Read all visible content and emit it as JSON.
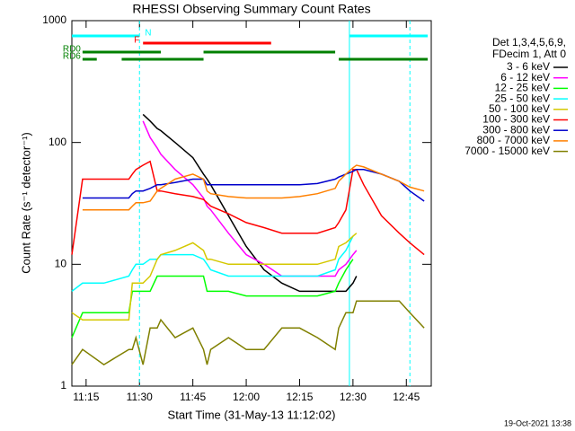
{
  "chart_data": {
    "type": "line",
    "title": "RHESSI Observing Summary Count Rates",
    "xlabel": "Start Time (31-May-13 11:12:02)",
    "ylabel": "Count Rate (s⁻¹ detector⁻¹)",
    "footer": "19-Oct-2021 13:38",
    "legend_header": [
      "Det 1,3,4,5,6,9,",
      "FDecim 1, Att 0"
    ],
    "log_y": true,
    "xlim": [
      "11:11",
      "12:52"
    ],
    "ylim": [
      1,
      1000
    ],
    "xticks": [
      "11:15",
      "11:30",
      "11:45",
      "12:00",
      "12:15",
      "12:30",
      "12:45"
    ],
    "yticks": [
      1,
      10,
      100,
      1000
    ],
    "x": [
      "11:11",
      "11:14",
      "11:20",
      "11:27",
      "11:28",
      "11:29",
      "11:31",
      "11:33",
      "11:35",
      "11:36",
      "11:40",
      "11:45",
      "11:48",
      "11:49",
      "11:50",
      "11:55",
      "12:00",
      "12:05",
      "12:10",
      "12:15",
      "12:20",
      "12:25",
      "12:26",
      "12:28",
      "12:30",
      "12:31",
      "12:33",
      "12:38",
      "12:43",
      "12:46",
      "12:50"
    ],
    "series": [
      {
        "name": "3 - 6 keV",
        "color": "#000000",
        "values": [
          null,
          null,
          null,
          null,
          null,
          null,
          170,
          150,
          130,
          125,
          100,
          75,
          55,
          50,
          45,
          25,
          14,
          9,
          7,
          6,
          6,
          6,
          6,
          6,
          7,
          8,
          null,
          null,
          null,
          null,
          null
        ]
      },
      {
        "name": "6 - 12 keV",
        "color": "#ff00ff",
        "values": [
          null,
          null,
          null,
          null,
          null,
          null,
          150,
          110,
          90,
          80,
          60,
          45,
          35,
          30,
          28,
          18,
          12,
          10,
          8,
          8,
          8,
          8,
          9,
          10,
          12,
          13,
          null,
          null,
          null,
          null,
          null
        ]
      },
      {
        "name": "12 - 25 keV",
        "color": "#00ff00",
        "values": [
          2.5,
          4,
          4,
          4,
          6,
          6,
          6,
          6,
          8,
          8,
          8,
          8,
          8,
          6,
          6,
          6,
          5.5,
          5.5,
          5.5,
          5.5,
          5.5,
          6,
          7,
          9,
          11,
          null,
          null,
          null,
          null,
          null,
          null
        ]
      },
      {
        "name": "25 - 50 keV",
        "color": "#00ffff",
        "values": [
          6,
          7,
          7,
          8,
          9,
          10,
          10,
          11,
          11,
          12,
          12,
          12,
          11,
          10,
          9,
          8,
          8,
          8,
          8,
          8,
          8,
          9,
          11,
          13,
          17,
          null,
          null,
          null,
          null,
          null,
          null
        ]
      },
      {
        "name": "50 - 100 keV",
        "color": "#d4c800",
        "values": [
          4,
          3.5,
          3.5,
          3.5,
          7,
          7,
          7,
          8,
          11,
          12,
          13,
          15,
          13,
          11,
          11,
          10,
          10,
          10,
          10,
          10,
          10,
          11,
          14,
          15,
          17,
          18,
          null,
          null,
          null,
          null,
          null
        ]
      },
      {
        "name": "100 - 300 keV",
        "color": "#ff0000",
        "values": [
          12,
          50,
          50,
          50,
          55,
          60,
          65,
          70,
          40,
          40,
          38,
          36,
          34,
          32,
          30,
          26,
          22,
          20,
          18,
          18,
          18,
          20,
          22,
          28,
          60,
          60,
          45,
          25,
          18,
          15,
          12
        ]
      },
      {
        "name": "300 - 800 keV",
        "color": "#0000cc",
        "values": [
          null,
          35,
          35,
          35,
          38,
          40,
          40,
          42,
          45,
          45,
          47,
          50,
          50,
          45,
          45,
          45,
          45,
          45,
          45,
          45,
          46,
          50,
          52,
          55,
          58,
          60,
          60,
          55,
          48,
          40,
          33
        ]
      },
      {
        "name": "800 - 7000 keV",
        "color": "#ff8000",
        "values": [
          null,
          28,
          28,
          28,
          30,
          32,
          32,
          33,
          40,
          42,
          50,
          55,
          50,
          40,
          38,
          36,
          35,
          35,
          35,
          36,
          38,
          42,
          48,
          55,
          62,
          65,
          63,
          55,
          48,
          43,
          40
        ]
      },
      {
        "name": "7000 - 15000 keV",
        "color": "#808000",
        "values": [
          1.5,
          2,
          1.5,
          2,
          2,
          2.5,
          1.5,
          3,
          3,
          3.5,
          2.5,
          3,
          2,
          1.5,
          2,
          2.5,
          2,
          2,
          3,
          3,
          2.5,
          2,
          3,
          4,
          4,
          5,
          5,
          5,
          5,
          4,
          3
        ]
      }
    ],
    "flags": [
      {
        "label": "N",
        "color": "#00ffff",
        "segments": [
          [
            "11:11",
            "11:30"
          ],
          [
            "12:29",
            "12:51"
          ]
        ]
      },
      {
        "label": "F",
        "color": "#ff0000",
        "segments": [
          [
            "11:31",
            "12:07"
          ]
        ]
      },
      {
        "label": "RD0",
        "color": "#008000",
        "segments": [
          [
            "11:14",
            "11:36"
          ],
          [
            "11:48",
            "12:25"
          ]
        ]
      },
      {
        "label": "RD6",
        "color": "#008000",
        "segments": [
          [
            "11:14",
            "11:18"
          ],
          [
            "11:25",
            "11:48"
          ],
          [
            "12:26",
            "12:51"
          ]
        ]
      }
    ],
    "markers": [
      {
        "x": "11:30",
        "color": "#00ffff",
        "dashed": true
      },
      {
        "x": "12:29",
        "color": "#00ffff",
        "dashed": false
      },
      {
        "x": "12:46",
        "color": "#00ffff",
        "dashed": true
      }
    ]
  }
}
